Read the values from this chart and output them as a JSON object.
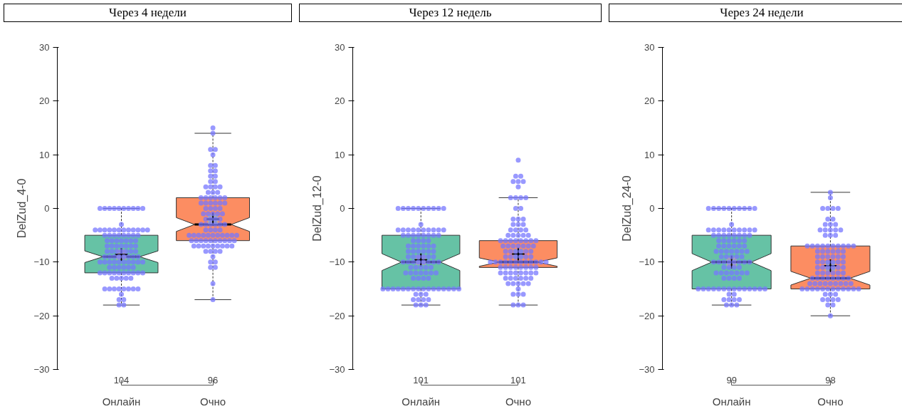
{
  "chart_data": [
    {
      "type": "box",
      "title": "Через 4 недели",
      "ylabel": "DelZud_4-0",
      "categories": [
        "Онлайн",
        "Очно"
      ],
      "ylim": [
        -30,
        30
      ],
      "yticks": [
        -30,
        -20,
        -10,
        0,
        10,
        20,
        30
      ],
      "grid": false,
      "annotations": [
        "104",
        "96"
      ],
      "series": [
        {
          "type": "box",
          "colors": [
            "#66c2a5",
            "#fc8d62"
          ],
          "boxes": [
            {
              "low": -18,
              "q1": -12,
              "median": -9,
              "q3": -5,
              "high": 0,
              "mean": -8.6
            },
            {
              "low": -17,
              "q1": -6,
              "median": -3,
              "q3": 2,
              "high": 14,
              "mean": -2
            }
          ]
        },
        {
          "type": "scatter",
          "color": "#7777ff",
          "x": [
            "Онлайн",
            "Онлайн",
            "Онлайн",
            "Онлайн",
            "Онлайн",
            "Онлайн",
            "Онлайн",
            "Онлайн",
            "Онлайн",
            "Онлайн",
            "Онлайн",
            "Онлайн",
            "Онлайн",
            "Онлайн",
            "Онлайн",
            "Онлайн",
            "Онлайн",
            "Онлайн",
            "Онлайн",
            "Онлайн",
            "Онлайн",
            "Онлайн",
            "Онлайн",
            "Онлайн",
            "Онлайн",
            "Онлайн",
            "Онлайн",
            "Онлайн",
            "Онлайн",
            "Онлайн",
            "Онлайн",
            "Онлайн",
            "Онлайн",
            "Онлайн",
            "Онлайн",
            "Онлайн",
            "Онлайн",
            "Онлайн",
            "Онлайн",
            "Онлайн",
            "Онлайн",
            "Онлайн",
            "Онлайн",
            "Онлайн",
            "Онлайн",
            "Онлайн",
            "Онлайн",
            "Онлайн",
            "Онлайн",
            "Онлайн",
            "Онлайн",
            "Онлайн",
            "Онлайн",
            "Онлайн",
            "Онлайн",
            "Онлайн",
            "Онлайн",
            "Онлайн",
            "Онлайн",
            "Онлайн",
            "Онлайн",
            "Онлайн",
            "Онлайн",
            "Онлайн",
            "Онлайн",
            "Онлайн",
            "Онлайн",
            "Онлайн",
            "Онлайн",
            "Онлайн",
            "Онлайн",
            "Онлайн",
            "Онлайн",
            "Онлайн",
            "Онлайн",
            "Онлайн",
            "Онлайн",
            "Онлайн",
            "Онлайн",
            "Онлайн",
            "Онлайн",
            "Онлайн",
            "Онлайн",
            "Онлайн",
            "Онлайн",
            "Онлайн",
            "Онлайн",
            "Онлайн",
            "Онлайн",
            "Онлайн",
            "Онлайн",
            "Онлайн",
            "Онлайн",
            "Онлайн",
            "Онлайн",
            "Онлайн",
            "Онлайн",
            "Онлайн",
            "Онлайн",
            "Онлайн",
            "Онлайн",
            "Онлайн",
            "Онлайн",
            "Онлайн",
            "Очно",
            "Очно",
            "Очно",
            "Очно",
            "Очно",
            "Очно",
            "Очно",
            "Очно",
            "Очно",
            "Очно",
            "Очно",
            "Очно",
            "Очно",
            "Очно",
            "Очно",
            "Очно",
            "Очно",
            "Очно",
            "Очно",
            "Очно",
            "Очно",
            "Очно",
            "Очно",
            "Очно",
            "Очно",
            "Очно",
            "Очно",
            "Очно",
            "Очно",
            "Очно",
            "Очно",
            "Очно",
            "Очно",
            "Очно",
            "Очно",
            "Очно",
            "Очно",
            "Очно",
            "Очно",
            "Очно",
            "Очно",
            "Очно",
            "Очно",
            "Очно",
            "Очно",
            "Очно",
            "Очно",
            "Очно",
            "Очно",
            "Очно",
            "Очно",
            "Очно",
            "Очно",
            "Очно",
            "Очно",
            "Очно",
            "Очно",
            "Очно",
            "Очно",
            "Очно",
            "Очно",
            "Очно",
            "Очно",
            "Очно",
            "Очно",
            "Очно",
            "Очно",
            "Очно",
            "Очно",
            "Очно",
            "Очно",
            "Очно",
            "Очно",
            "Очно",
            "Очно",
            "Очно",
            "Очно",
            "Очно",
            "Очно",
            "Очно",
            "Очно",
            "Очно",
            "Очно",
            "Очно",
            "Очно",
            "Очно",
            "Очно",
            "Очно",
            "Очно",
            "Очно",
            "Очно",
            "Очно",
            "Очно",
            "Очно",
            "Очно",
            "Очно"
          ],
          "values": [
            0,
            0,
            0,
            0,
            0,
            0,
            0,
            0,
            0,
            0,
            -3,
            -4,
            -4,
            -4,
            -4,
            -4,
            -4,
            -4,
            -4,
            -4,
            -4,
            -4,
            -4,
            -5,
            -5,
            -5,
            -5,
            -5,
            -5,
            -5,
            -5,
            -6,
            -6,
            -6,
            -6,
            -6,
            -6,
            -6,
            -7,
            -7,
            -7,
            -7,
            -7,
            -7,
            -7,
            -8,
            -8,
            -8,
            -8,
            -8,
            -8,
            -8,
            -9,
            -9,
            -9,
            -9,
            -9,
            -9,
            -9,
            -9,
            -10,
            -10,
            -10,
            -10,
            -10,
            -10,
            -10,
            -10,
            -10,
            -10,
            -11,
            -11,
            -11,
            -11,
            -11,
            -11,
            -12,
            -12,
            -12,
            -12,
            -12,
            -12,
            -12,
            -12,
            -12,
            -12,
            -13,
            -13,
            -13,
            -13,
            -13,
            -15,
            -15,
            -15,
            -15,
            -15,
            -15,
            -15,
            -15,
            -16,
            -17,
            -17,
            -18,
            -18,
            15,
            14,
            11,
            11,
            10,
            8,
            8,
            7,
            7,
            6,
            6,
            5,
            5,
            4,
            4,
            4,
            4,
            3,
            3,
            3,
            2,
            2,
            2,
            2,
            2,
            2,
            1,
            1,
            1,
            1,
            1,
            1,
            0,
            0,
            0,
            0,
            -1,
            -1,
            -1,
            -1,
            -1,
            -2,
            -2,
            -2,
            -2,
            -3,
            -3,
            -3,
            -3,
            -3,
            -3,
            -4,
            -4,
            -4,
            -4,
            -5,
            -5,
            -5,
            -5,
            -5,
            -5,
            -5,
            -5,
            -5,
            -5,
            -5,
            -6,
            -6,
            -6,
            -6,
            -6,
            -6,
            -6,
            -6,
            -6,
            -6,
            -7,
            -7,
            -7,
            -7,
            -7,
            -7,
            -7,
            -7,
            -7,
            -8,
            -8,
            -8,
            -8,
            -9,
            -10,
            -10,
            -11,
            -11,
            -14,
            -17
          ]
        }
      ]
    },
    {
      "type": "box",
      "title": "Через 12 недель",
      "ylabel": "DelZud_12-0",
      "categories": [
        "Онлайн",
        "Очно"
      ],
      "ylim": [
        -30,
        30
      ],
      "yticks": [
        -30,
        -20,
        -10,
        0,
        10,
        20,
        30
      ],
      "grid": false,
      "annotations": [
        "101",
        "101"
      ],
      "series": [
        {
          "type": "box",
          "colors": [
            "#66c2a5",
            "#fc8d62"
          ],
          "boxes": [
            {
              "low": -18,
              "q1": -15,
              "median": -10,
              "q3": -5,
              "high": 0,
              "mean": -9.6
            },
            {
              "low": -18,
              "q1": -11,
              "median": -10,
              "q3": -6,
              "high": 2,
              "mean": -8.5
            }
          ]
        },
        {
          "type": "scatter",
          "color": "#7777ff",
          "x": [
            "Онлайн",
            "Онлайн",
            "Онлайн",
            "Онлайн",
            "Онлайн",
            "Онлайн",
            "Онлайн",
            "Онлайн",
            "Онлайн",
            "Онлайн",
            "Онлайн",
            "Онлайн",
            "Онлайн",
            "Онлайн",
            "Онлайн",
            "Онлайн",
            "Онлайн",
            "Онлайн",
            "Онлайн",
            "Онлайн",
            "Онлайн",
            "Онлайн",
            "Онлайн",
            "Онлайн",
            "Онлайн",
            "Онлайн",
            "Онлайн",
            "Онлайн",
            "Онлайн",
            "Онлайн",
            "Онлайн",
            "Онлайн",
            "Онлайн",
            "Онлайн",
            "Онлайн",
            "Онлайн",
            "Онлайн",
            "Онлайн",
            "Онлайн",
            "Онлайн",
            "Онлайн",
            "Онлайн",
            "Онлайн",
            "Онлайн",
            "Онлайн",
            "Онлайн",
            "Онлайн",
            "Онлайн",
            "Онлайн",
            "Онлайн",
            "Онлайн",
            "Онлайн",
            "Онлайн",
            "Онлайн",
            "Онлайн",
            "Онлайн",
            "Онлайн",
            "Онлайн",
            "Онлайн",
            "Онлайн",
            "Онлайн",
            "Онлайн",
            "Онлайн",
            "Онлайн",
            "Онлайн",
            "Онлайн",
            "Онлайн",
            "Онлайн",
            "Онлайн",
            "Онлайн",
            "Онлайн",
            "Онлайн",
            "Онлайн",
            "Онлайн",
            "Онлайн",
            "Онлайн",
            "Онлайн",
            "Онлайн",
            "Онлайн",
            "Онлайн",
            "Онлайн",
            "Онлайн",
            "Онлайн",
            "Онлайн",
            "Онлайн",
            "Онлайн",
            "Онлайн",
            "Онлайн",
            "Онлайн",
            "Онлайн",
            "Онлайн",
            "Онлайн",
            "Онлайн",
            "Онлайн",
            "Онлайн",
            "Онлайн",
            "Онлайн",
            "Онлайн",
            "Онлайн",
            "Онлайн",
            "Онлайн",
            "Очно",
            "Очно",
            "Очно",
            "Очно",
            "Очно",
            "Очно",
            "Очно",
            "Очно",
            "Очно",
            "Очно",
            "Очно",
            "Очно",
            "Очно",
            "Очно",
            "Очно",
            "Очно",
            "Очно",
            "Очно",
            "Очно",
            "Очно",
            "Очно",
            "Очно",
            "Очно",
            "Очно",
            "Очно",
            "Очно",
            "Очно",
            "Очно",
            "Очно",
            "Очно",
            "Очно",
            "Очно",
            "Очно",
            "Очно",
            "Очно",
            "Очно",
            "Очно",
            "Очно",
            "Очно",
            "Очно",
            "Очно",
            "Очно",
            "Очно",
            "Очно",
            "Очно",
            "Очно",
            "Очно",
            "Очно",
            "Очно",
            "Очно",
            "Очно",
            "Очно",
            "Очно",
            "Очно",
            "Очно",
            "Очно",
            "Очно",
            "Очно",
            "Очно",
            "Очно",
            "Очно",
            "Очно",
            "Очно",
            "Очно",
            "Очно",
            "Очно",
            "Очно",
            "Очно",
            "Очно",
            "Очно",
            "Очно",
            "Очно",
            "Очно",
            "Очно",
            "Очно",
            "Очно",
            "Очно",
            "Очно",
            "Очно",
            "Очно",
            "Очно",
            "Очно",
            "Очно",
            "Очно",
            "Очно",
            "Очно",
            "Очно",
            "Очно",
            "Очно",
            "Очно",
            "Очно",
            "Очно",
            "Очно",
            "Очно",
            "Очно",
            "Очно",
            "Очно",
            "Очно",
            "Очно",
            "Очно",
            "Очно"
          ],
          "values": [
            0,
            0,
            0,
            0,
            0,
            0,
            0,
            0,
            0,
            0,
            -3,
            -4,
            -4,
            -4,
            -4,
            -4,
            -4,
            -4,
            -4,
            -4,
            -4,
            -5,
            -5,
            -5,
            -5,
            -5,
            -5,
            -5,
            -5,
            -6,
            -6,
            -6,
            -6,
            -7,
            -7,
            -7,
            -7,
            -7,
            -7,
            -8,
            -8,
            -8,
            -8,
            -8,
            -8,
            -9,
            -9,
            -9,
            -9,
            -9,
            -9,
            -10,
            -10,
            -10,
            -10,
            -10,
            -10,
            -10,
            -10,
            -11,
            -11,
            -11,
            -11,
            -11,
            -12,
            -12,
            -12,
            -12,
            -12,
            -12,
            -12,
            -13,
            -13,
            -13,
            -13,
            -15,
            -15,
            -15,
            -15,
            -15,
            -15,
            -15,
            -15,
            -15,
            -15,
            -15,
            -15,
            -15,
            -15,
            -15,
            -15,
            -16,
            -16,
            -16,
            -17,
            -17,
            -17,
            -17,
            -18,
            -18,
            -18,
            9,
            6,
            6,
            5,
            5,
            5,
            4,
            2,
            2,
            2,
            2,
            0,
            0,
            -2,
            -2,
            -2,
            -3,
            -3,
            -3,
            -4,
            -4,
            -4,
            -4,
            -5,
            -5,
            -5,
            -5,
            -5,
            -6,
            -6,
            -6,
            -6,
            -6,
            -6,
            -6,
            -6,
            -7,
            -7,
            -7,
            -7,
            -7,
            -7,
            -7,
            -8,
            -8,
            -8,
            -8,
            -8,
            -8,
            -9,
            -9,
            -9,
            -9,
            -9,
            -9,
            -10,
            -10,
            -10,
            -10,
            -10,
            -10,
            -10,
            -10,
            -10,
            -10,
            -10,
            -10,
            -11,
            -11,
            -11,
            -11,
            -11,
            -11,
            -11,
            -11,
            -12,
            -12,
            -12,
            -12,
            -12,
            -12,
            -12,
            -12,
            -13,
            -13,
            -13,
            -13,
            -13,
            -13,
            -14,
            -14,
            -14,
            -14,
            -14,
            -15,
            -16,
            -16,
            -16,
            -18,
            -18,
            -18
          ]
        }
      ]
    },
    {
      "type": "box",
      "title": "Через 24 недели",
      "ylabel": "DelZud_24-0",
      "categories": [
        "Онлайн",
        "Очно"
      ],
      "ylim": [
        -30,
        30
      ],
      "yticks": [
        -30,
        -20,
        -10,
        0,
        10,
        20,
        30
      ],
      "grid": false,
      "annotations": [
        "99",
        "98"
      ],
      "series": [
        {
          "type": "box",
          "colors": [
            "#66c2a5",
            "#fc8d62"
          ],
          "boxes": [
            {
              "low": -18,
              "q1": -15,
              "median": -10,
              "q3": -5,
              "high": 0,
              "mean": -10
            },
            {
              "low": -20,
              "q1": -15,
              "median": -13,
              "q3": -7,
              "high": 3,
              "mean": -10.7
            }
          ]
        },
        {
          "type": "scatter",
          "color": "#7777ff",
          "x": [
            "Онлайн",
            "Онлайн",
            "Онлайн",
            "Онлайн",
            "Онлайн",
            "Онлайн",
            "Онлайн",
            "Онлайн",
            "Онлайн",
            "Онлайн",
            "Онлайн",
            "Онлайн",
            "Онлайн",
            "Онлайн",
            "Онлайн",
            "Онлайн",
            "Онлайн",
            "Онлайн",
            "Онлайн",
            "Онлайн",
            "Онлайн",
            "Онлайн",
            "Онлайн",
            "Онлайн",
            "Онлайн",
            "Онлайн",
            "Онлайн",
            "Онлайн",
            "Онлайн",
            "Онлайн",
            "Онлайн",
            "Онлайн",
            "Онлайн",
            "Онлайн",
            "Онлайн",
            "Онлайн",
            "Онлайн",
            "Онлайн",
            "Онлайн",
            "Онлайн",
            "Онлайн",
            "Онлайн",
            "Онлайн",
            "Онлайн",
            "Онлайн",
            "Онлайн",
            "Онлайн",
            "Онлайн",
            "Онлайн",
            "Онлайн",
            "Онлайн",
            "Онлайн",
            "Онлайн",
            "Онлайн",
            "Онлайн",
            "Онлайн",
            "Онлайн",
            "Онлайн",
            "Онлайн",
            "Онлайн",
            "Онлайн",
            "Онлайн",
            "Онлайн",
            "Онлайн",
            "Онлайн",
            "Онлайн",
            "Онлайн",
            "Онлайн",
            "Онлайн",
            "Онлайн",
            "Онлайн",
            "Онлайн",
            "Онлайн",
            "Онлайн",
            "Онлайн",
            "Онлайн",
            "Онлайн",
            "Онлайн",
            "Онлайн",
            "Онлайн",
            "Онлайн",
            "Онлайн",
            "Онлайн",
            "Онлайн",
            "Онлайн",
            "Онлайн",
            "Онлайн",
            "Онлайн",
            "Онлайн",
            "Онлайн",
            "Онлайн",
            "Онлайн",
            "Онлайн",
            "Онлайн",
            "Онлайн",
            "Онлайн",
            "Онлайн",
            "Онлайн",
            "Онлайн",
            "Очно",
            "Очно",
            "Очно",
            "Очно",
            "Очно",
            "Очно",
            "Очно",
            "Очно",
            "Очно",
            "Очно",
            "Очно",
            "Очно",
            "Очно",
            "Очно",
            "Очно",
            "Очно",
            "Очно",
            "Очно",
            "Очно",
            "Очно",
            "Очно",
            "Очно",
            "Очно",
            "Очно",
            "Очно",
            "Очно",
            "Очно",
            "Очно",
            "Очно",
            "Очно",
            "Очно",
            "Очно",
            "Очно",
            "Очно",
            "Очно",
            "Очно",
            "Очно",
            "Очно",
            "Очно",
            "Очно",
            "Очно",
            "Очно",
            "Очно",
            "Очно",
            "Очно",
            "Очно",
            "Очно",
            "Очно",
            "Очно",
            "Очно",
            "Очно",
            "Очно",
            "Очно",
            "Очно",
            "Очно",
            "Очно",
            "Очно",
            "Очно",
            "Очно",
            "Очно",
            "Очно",
            "Очно",
            "Очно",
            "Очно",
            "Очно",
            "Очно",
            "Очно",
            "Очно",
            "Очно",
            "Очно",
            "Очно",
            "Очно",
            "Очно",
            "Очно",
            "Очно",
            "Очно",
            "Очно",
            "Очно",
            "Очно",
            "Очно",
            "Очно",
            "Очно",
            "Очно",
            "Очно",
            "Очно",
            "Очно",
            "Очно",
            "Очно",
            "Очно",
            "Очно",
            "Очно",
            "Очно",
            "Очно",
            "Очно",
            "Очно",
            "Очно",
            "Очно",
            "Очно"
          ],
          "values": [
            0,
            0,
            0,
            0,
            0,
            0,
            0,
            0,
            0,
            0,
            -3,
            -4,
            -4,
            -4,
            -4,
            -4,
            -4,
            -4,
            -4,
            -4,
            -4,
            -5,
            -5,
            -5,
            -5,
            -5,
            -5,
            -5,
            -5,
            -6,
            -6,
            -6,
            -6,
            -6,
            -6,
            -7,
            -7,
            -7,
            -7,
            -7,
            -7,
            -8,
            -8,
            -8,
            -8,
            -8,
            -8,
            -8,
            -9,
            -9,
            -9,
            -9,
            -9,
            -10,
            -10,
            -10,
            -10,
            -10,
            -10,
            -10,
            -10,
            -11,
            -11,
            -11,
            -11,
            -12,
            -12,
            -12,
            -12,
            -12,
            -12,
            -12,
            -13,
            -13,
            -13,
            -13,
            -15,
            -15,
            -15,
            -15,
            -15,
            -15,
            -15,
            -15,
            -15,
            -15,
            -15,
            -15,
            -15,
            -15,
            -16,
            -16,
            -17,
            -17,
            -17,
            -17,
            -18,
            -18,
            -18,
            3,
            2,
            0,
            0,
            0,
            0,
            -2,
            -2,
            -3,
            -3,
            -3,
            -4,
            -4,
            -4,
            -4,
            -4,
            -5,
            -5,
            -5,
            -7,
            -7,
            -7,
            -7,
            -7,
            -7,
            -7,
            -7,
            -7,
            -7,
            -8,
            -8,
            -8,
            -8,
            -8,
            -8,
            -9,
            -9,
            -9,
            -9,
            -9,
            -9,
            -10,
            -10,
            -10,
            -10,
            -10,
            -10,
            -11,
            -11,
            -11,
            -11,
            -11,
            -11,
            -12,
            -12,
            -12,
            -12,
            -12,
            -12,
            -13,
            -13,
            -13,
            -13,
            -13,
            -13,
            -13,
            -13,
            -14,
            -14,
            -14,
            -14,
            -14,
            -14,
            -14,
            -14,
            -14,
            -15,
            -15,
            -15,
            -15,
            -15,
            -15,
            -15,
            -15,
            -15,
            -15,
            -15,
            -15,
            -16,
            -16,
            -16,
            -17,
            -17,
            -17,
            -17,
            -18,
            -18,
            -20
          ]
        }
      ]
    }
  ]
}
